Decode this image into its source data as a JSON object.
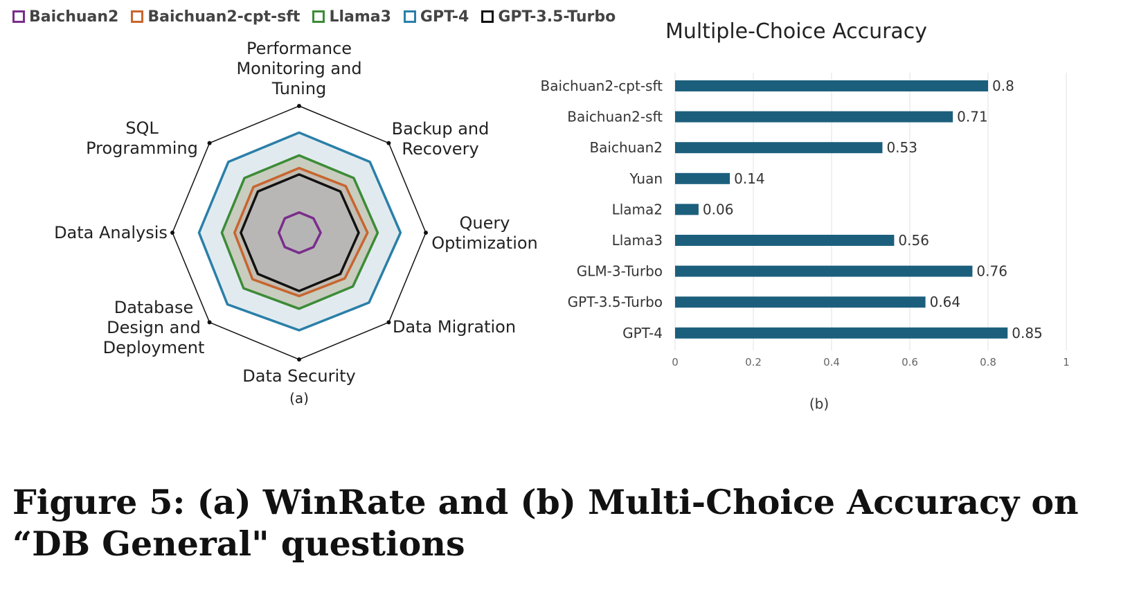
{
  "chart_data": [
    {
      "type": "radar",
      "panel_label": "(a)",
      "axes": [
        [
          "Performance",
          "Monitoring and",
          "Tuning"
        ],
        [
          "Backup and",
          "Recovery"
        ],
        [
          "Query",
          "Optimization"
        ],
        [
          "Data Migration"
        ],
        [
          "Data Security"
        ],
        [
          "Database",
          "Design and",
          "Deployment"
        ],
        [
          "Data Analysis"
        ],
        [
          "SQL",
          "Programming"
        ]
      ],
      "rmax": 1.0,
      "legend_position": "top-left",
      "series": [
        {
          "name": "GPT-4",
          "color": "#2a7fa8",
          "fill": "#dce8ec",
          "values": [
            0.79,
            0.79,
            0.8,
            0.78,
            0.77,
            0.8,
            0.79,
            0.79
          ]
        },
        {
          "name": "Llama3",
          "color": "#3d8b37",
          "fill": "#c3c8b7",
          "values": [
            0.61,
            0.61,
            0.62,
            0.6,
            0.6,
            0.62,
            0.61,
            0.61
          ]
        },
        {
          "name": "Baichuan2-cpt-sft",
          "color": "#c8652e",
          "fill": "#c2bab0",
          "values": [
            0.51,
            0.52,
            0.54,
            0.51,
            0.5,
            0.52,
            0.51,
            0.51
          ]
        },
        {
          "name": "GPT-3.5-Turbo",
          "color": "#111111",
          "fill": "#b6b6b6",
          "values": [
            0.46,
            0.46,
            0.47,
            0.46,
            0.46,
            0.46,
            0.46,
            0.46
          ]
        },
        {
          "name": "Baichuan2",
          "color": "#7a2d8c",
          "fill": "#b5b5b5",
          "values": [
            0.16,
            0.16,
            0.17,
            0.16,
            0.16,
            0.16,
            0.16,
            0.16
          ]
        }
      ],
      "legend_order": [
        "Baichuan2",
        "Baichuan2-cpt-sft",
        "Llama3",
        "GPT-4",
        "GPT-3.5-Turbo"
      ]
    },
    {
      "type": "bar",
      "orientation": "horizontal",
      "title": "Multiple-Choice Accuracy",
      "panel_label": "(b)",
      "categories": [
        "Baichuan2-cpt-sft",
        "Baichuan2-sft",
        "Baichuan2",
        "Yuan",
        "Llama2",
        "Llama3",
        "GLM-3-Turbo",
        "GPT-3.5-Turbo",
        "GPT-4"
      ],
      "values": [
        0.8,
        0.71,
        0.53,
        0.14,
        0.06,
        0.56,
        0.76,
        0.64,
        0.85
      ],
      "value_labels": [
        "0.8",
        "0.71",
        "0.53",
        "0.14",
        "0.06",
        "0.56",
        "0.76",
        "0.64",
        "0.85"
      ],
      "xlim": [
        0,
        1
      ],
      "xticks": [
        0,
        0.2,
        0.4,
        0.6,
        0.8,
        1
      ],
      "xtick_labels": [
        "0",
        "0.2",
        "0.4",
        "0.6",
        "0.8",
        "1"
      ],
      "bar_color": "#1c5f7d",
      "grid": true
    }
  ],
  "caption": "Figure 5: (a) WinRate and (b) Multi-Choice Accuracy on “DB General\" questions"
}
